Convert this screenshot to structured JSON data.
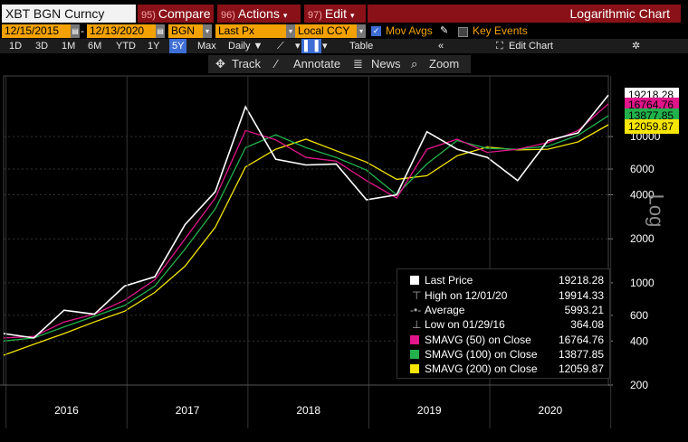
{
  "header": {
    "ticker": "XBT BGN Curncy",
    "compare_num": "95)",
    "compare_label": "Compare",
    "actions_num": "96)",
    "actions_label": "Actions",
    "edit_num": "97)",
    "edit_label": "Edit",
    "chart_title": "Logarithmic Chart"
  },
  "fields": {
    "start_date": "12/15/2015",
    "end_date": "12/13/2020",
    "source": "BGN",
    "price": "Last Px",
    "currency": "Local CCY",
    "mov_avgs": "Mov Avgs",
    "key_events": "Key Events"
  },
  "toolbar": {
    "periods": [
      "1D",
      "3D",
      "1M",
      "6M",
      "YTD",
      "1Y",
      "5Y",
      "Max"
    ],
    "selected_period": "5Y",
    "frequency": "Daily",
    "table": "Table",
    "edit_chart": "Edit Chart"
  },
  "tools": {
    "track": "Track",
    "annotate": "Annotate",
    "news": "News",
    "zoom": "Zoom"
  },
  "colors": {
    "accent": "#f2a100",
    "header_red": "#8b1119",
    "price": "#ffffff",
    "sma50": "#e0168a",
    "sma100": "#22b14c",
    "sma200": "#f5e500",
    "selected": "#3f6fd6"
  },
  "legend": {
    "last_price_label": "Last Price",
    "last_price_value": "19218.28",
    "high_label": "High on 12/01/20",
    "high_value": "19914.33",
    "average_label": "Average",
    "average_value": "5993.21",
    "low_label": "Low on 01/29/16",
    "low_value": "364.08",
    "sma50_label": "SMAVG (50)  on Close",
    "sma50_value": "16764.76",
    "sma100_label": "SMAVG (100)  on Close",
    "sma100_value": "13877.85",
    "sma200_label": "SMAVG (200)  on Close",
    "sma200_value": "12059.87"
  },
  "chart_data": {
    "type": "line",
    "scale": "log",
    "ylabel": "Log",
    "ylim": [
      200,
      26000
    ],
    "yticks": [
      200,
      400,
      600,
      1000,
      2000,
      4000,
      6000,
      10000
    ],
    "x_years": [
      "2016",
      "2017",
      "2018",
      "2019",
      "2020"
    ],
    "x": [
      "2015-12",
      "2016-03",
      "2016-06",
      "2016-09",
      "2016-12",
      "2017-03",
      "2017-06",
      "2017-09",
      "2017-12",
      "2018-03",
      "2018-06",
      "2018-09",
      "2018-12",
      "2019-03",
      "2019-06",
      "2019-09",
      "2019-12",
      "2020-03",
      "2020-06",
      "2020-09",
      "2020-12"
    ],
    "series": [
      {
        "name": "Last Price",
        "color": "#ffffff",
        "values": [
          450,
          420,
          650,
          610,
          950,
          1100,
          2500,
          4200,
          16000,
          7000,
          6400,
          6500,
          3700,
          4000,
          10800,
          8200,
          7200,
          5000,
          9400,
          10600,
          19218.28
        ]
      },
      {
        "name": "SMAVG (50)",
        "color": "#e0168a",
        "values": [
          420,
          430,
          540,
          610,
          760,
          1050,
          2000,
          3800,
          11000,
          9500,
          7200,
          6800,
          5000,
          3800,
          8200,
          9600,
          7800,
          8200,
          9100,
          11000,
          16764.76
        ]
      },
      {
        "name": "SMAVG (100)",
        "color": "#22b14c",
        "values": [
          400,
          420,
          500,
          590,
          700,
          950,
          1700,
          3200,
          8400,
          10300,
          8400,
          7200,
          5900,
          4000,
          6500,
          9400,
          8300,
          8200,
          8600,
          10200,
          13877.85
        ]
      },
      {
        "name": "SMAVG (200)",
        "color": "#f5e500",
        "values": [
          320,
          380,
          450,
          540,
          640,
          860,
          1300,
          2400,
          6200,
          8200,
          9600,
          8000,
          6700,
          5100,
          5400,
          7400,
          8500,
          8100,
          8200,
          9200,
          12059.87
        ]
      }
    ],
    "labels": {
      "last": "19218.28",
      "sma50": "16764.76",
      "sma100": "13877.85",
      "sma200": "12059.87"
    }
  }
}
